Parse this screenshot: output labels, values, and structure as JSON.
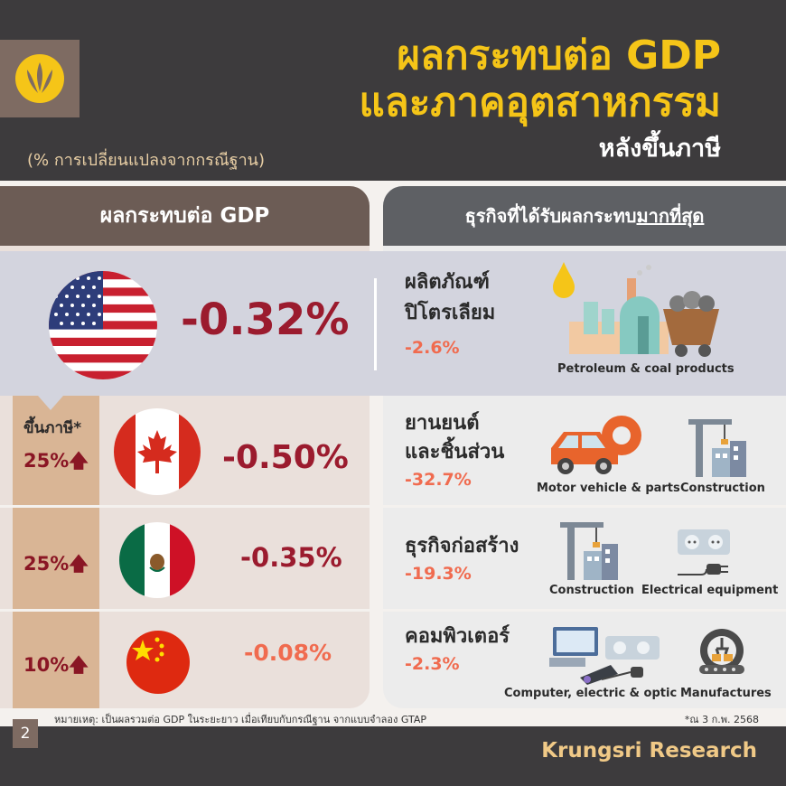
{
  "header": {
    "title_line1": "ผลกระทบต่อ GDP",
    "title_line2": "และภาคอุตสาหกรรม",
    "title_line3": "หลังขึ้นภาษี",
    "subtitle": "(% การเปลี่ยนแปลงจากกรณีฐาน)",
    "logo": "krungsri-logo-icon"
  },
  "sections": {
    "left_header": "ผลกระทบต่อ GDP",
    "right_header_prefix": "ธุรกิจที่ได้รับผลกระทบ",
    "right_header_emph": "มากที่สุด"
  },
  "tariff_label": "ขึ้นภาษี*",
  "countries": [
    {
      "flag": "usa-flag-icon",
      "gdp": "-0.32%",
      "tariff": "",
      "industry_line1": "ผลิตภัณฑ์",
      "industry_line2": "ปิโตรเลียม",
      "industry_pct": "-2.6%",
      "icons": [
        {
          "name": "petroleum-coal-icon",
          "caption": "Petroleum & coal products"
        }
      ]
    },
    {
      "flag": "canada-flag-icon",
      "gdp": "-0.50%",
      "tariff": "25%",
      "industry_line1": "ยานยนต์",
      "industry_line2": "และชิ้นส่วน",
      "industry_pct": "-32.7%",
      "icons": [
        {
          "name": "motor-vehicle-icon",
          "caption": "Motor vehicle & parts"
        },
        {
          "name": "construction-icon",
          "caption": "Construction"
        }
      ]
    },
    {
      "flag": "mexico-flag-icon",
      "gdp": "-0.35%",
      "tariff": "25%",
      "industry_line1": "ธุรกิจก่อสร้าง",
      "industry_line2": "",
      "industry_pct": "-19.3%",
      "icons": [
        {
          "name": "construction-icon",
          "caption": "Construction"
        },
        {
          "name": "electrical-equipment-icon",
          "caption": "Electrical equipment"
        }
      ]
    },
    {
      "flag": "china-flag-icon",
      "gdp": "-0.08%",
      "tariff": "10%",
      "industry_line1": "คอมพิวเตอร์",
      "industry_line2": "",
      "industry_pct": "-2.3%",
      "icons": [
        {
          "name": "computer-electric-icon",
          "caption": "Computer, electric & optic"
        },
        {
          "name": "manufactures-icon",
          "caption": "Manufactures"
        }
      ]
    }
  ],
  "footnote": "หมายเหตุ: เป็นผลรวมต่อ GDP ในระยะยาว เมื่อเทียบกับกรณีฐาน จากแบบจำลอง GTAP",
  "date_note": "*ณ 3 ก.พ. 2568",
  "page_number": "2",
  "brand": "Krungsri Research",
  "colors": {
    "header_bg": "#3d3b3d",
    "title_yellow": "#f5c518",
    "gdp_dark_red": "#9b1b2e",
    "gdp_orange": "#f06b4f",
    "tariff_tan": "#d9b595",
    "brand_gold": "#f0c987"
  }
}
